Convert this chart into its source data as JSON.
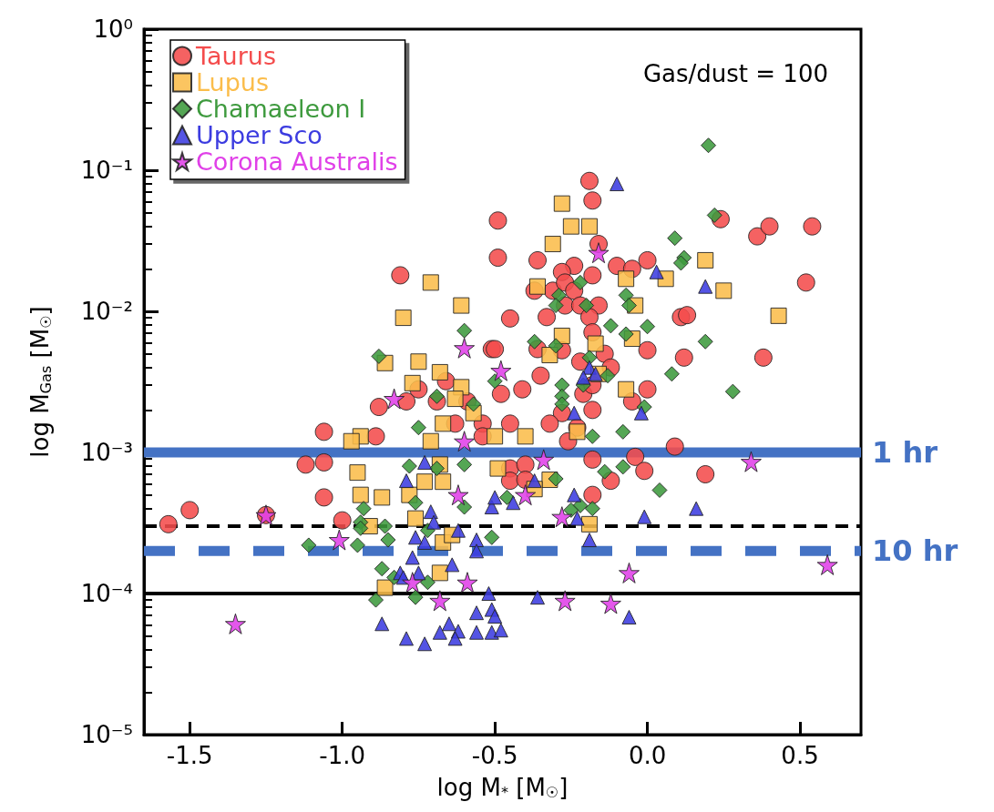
{
  "chart_data": {
    "type": "scatter",
    "xlabel": "log M$_{*}$ [M$_{☉}$]",
    "ylabel": "log M$_{Gas}$ [M$_{☉}$]",
    "log": "y",
    "legend": "top left",
    "xlim": [
      -1.65,
      0.7
    ],
    "xticks": [
      -1.5,
      {
        "value": -1,
        "label": "-1.0"
      },
      -0.5,
      {
        "value": 0,
        "label": "0.0"
      },
      0.5
    ],
    "ylim": [
      1e-05,
      1
    ],
    "yticks": [
      {
        "value": 1e-05,
        "label": "10⁻⁵"
      },
      {
        "value": 0.0001,
        "label": "10⁻⁴"
      },
      {
        "value": 0.001,
        "label": "10⁻³"
      },
      {
        "value": 0.01,
        "label": "10⁻²"
      },
      {
        "value": 0.1,
        "label": "10⁻¹"
      },
      {
        "value": 1,
        "label": "10⁰"
      }
    ],
    "annotations": [
      "Gas/dust = 100"
    ],
    "ref_lines": [
      {
        "axis": "y",
        "value": 0.001,
        "label": "1 hr",
        "color": "#4472c4",
        "line_style": "solid"
      },
      {
        "axis": "y",
        "value": 0.0003,
        "label": null,
        "color": "#000000",
        "line_style": "dashed"
      },
      {
        "axis": "y",
        "value": 0.0002,
        "label": "10 hr",
        "color": "#4472c4",
        "line_style": "dashed"
      },
      {
        "axis": "y",
        "value": 0.0001,
        "label": null,
        "color": "#000000",
        "line_style": "solid"
      }
    ],
    "series": [
      {
        "name": "Taurus",
        "color": "#f44c4c",
        "marker": "circle",
        "x": [
          -1.57,
          -1.5,
          -1.25,
          -1.06,
          -1.0,
          -1.12,
          -1.06,
          -1.06,
          -0.89,
          -0.88,
          -0.81,
          -0.79,
          -0.75,
          -0.66,
          -0.69,
          -0.59,
          -0.63,
          -0.54,
          -0.54,
          -0.51,
          -0.49,
          -0.49,
          -0.19,
          -0.18,
          -0.36,
          -0.24,
          -0.28,
          -0.18,
          -0.16,
          -0.1,
          -0.05,
          0.0,
          0.24,
          0.36,
          0.4,
          0.54,
          0.52,
          -0.37,
          -0.31,
          -0.27,
          -0.24,
          -0.27,
          -0.22,
          -0.16,
          -0.33,
          -0.19,
          0.11,
          0.13,
          -0.45,
          -0.5,
          -0.36,
          -0.28,
          -0.18,
          -0.14,
          -0.22,
          -0.12,
          0.0,
          0.12,
          0.38,
          -0.35,
          -0.41,
          -0.48,
          -0.21,
          -0.18,
          -0.05,
          0.0,
          -0.18,
          -0.28,
          -0.32,
          -0.45,
          -0.23,
          -0.18,
          -0.04,
          -0.01,
          0.19,
          -0.12,
          -0.18,
          -0.45,
          -0.4,
          -0.45,
          -0.4,
          -0.26,
          0.09
        ],
        "values": [
          0.00031,
          0.00039,
          0.00036,
          0.00048,
          0.00033,
          0.00082,
          0.00085,
          0.0014,
          0.0013,
          0.0021,
          0.018,
          0.0023,
          0.0028,
          0.0032,
          0.0023,
          0.0023,
          0.0016,
          0.0016,
          0.0013,
          0.0054,
          0.044,
          0.024,
          0.084,
          0.061,
          0.023,
          0.021,
          0.019,
          0.018,
          0.03,
          0.021,
          0.02,
          0.023,
          0.045,
          0.034,
          0.04,
          0.04,
          0.016,
          0.014,
          0.014,
          0.016,
          0.014,
          0.011,
          0.011,
          0.011,
          0.0091,
          0.0091,
          0.0091,
          0.0094,
          0.0089,
          0.0054,
          0.0054,
          0.0053,
          0.0071,
          0.005,
          0.0044,
          0.004,
          0.0053,
          0.0047,
          0.0047,
          0.0035,
          0.0028,
          0.0026,
          0.0026,
          0.003,
          0.0023,
          0.0028,
          0.002,
          0.0019,
          0.0016,
          0.0016,
          0.0015,
          0.00089,
          0.00093,
          0.00074,
          0.0007,
          0.00063,
          0.0005,
          0.00077,
          0.00082,
          0.00063,
          0.00064,
          0.0012,
          0.0011
        ]
      },
      {
        "name": "Lupus",
        "color": "#fbbd4b",
        "marker": "square",
        "x": [
          -0.71,
          -0.61,
          -0.8,
          -0.86,
          -0.75,
          -0.68,
          -0.77,
          -0.61,
          -0.63,
          -0.57,
          -0.67,
          -0.94,
          -0.97,
          -0.71,
          -0.95,
          -0.94,
          -0.87,
          -0.78,
          -0.73,
          -0.67,
          -0.76,
          -0.67,
          -0.64,
          -0.68,
          -0.86,
          -0.91,
          -0.68,
          -0.28,
          -0.25,
          -0.19,
          -0.31,
          -0.36,
          -0.07,
          0.06,
          0.19,
          0.25,
          0.43,
          -0.04,
          -0.28,
          -0.17,
          -0.32,
          -0.05,
          -0.16,
          -0.07,
          -0.5,
          -0.4,
          -0.23,
          -0.49,
          -0.32,
          -0.37,
          -0.19
        ],
        "values": [
          0.016,
          0.011,
          0.009,
          0.0043,
          0.0044,
          0.0037,
          0.0031,
          0.0029,
          0.0024,
          0.0019,
          0.0016,
          0.0013,
          0.0012,
          0.0012,
          0.00072,
          0.0005,
          0.00048,
          0.0005,
          0.00062,
          0.00062,
          0.00034,
          0.00023,
          0.00026,
          0.00014,
          0.00011,
          0.0003,
          0.00082,
          0.058,
          0.04,
          0.04,
          0.03,
          0.015,
          0.017,
          0.017,
          0.023,
          0.014,
          0.0093,
          0.011,
          0.0067,
          0.0059,
          0.0049,
          0.0064,
          0.0036,
          0.0028,
          0.0013,
          0.0013,
          0.0014,
          0.00077,
          0.00064,
          0.00055,
          0.00031
        ]
      },
      {
        "name": "Chamaeleon I",
        "color": "#3e9a3e",
        "marker": "diamond",
        "x": [
          0.2,
          0.22,
          0.09,
          0.12,
          0.11,
          -0.22,
          -0.29,
          -0.3,
          -0.2,
          -0.07,
          -0.06,
          -0.12,
          0.0,
          -0.07,
          0.19,
          -0.37,
          -0.3,
          -0.19,
          -0.13,
          0.08,
          0.28,
          -0.28,
          -0.21,
          -0.28,
          -0.28,
          -0.01,
          -0.08,
          -0.18,
          -0.5,
          -0.88,
          -0.6,
          -0.69,
          -0.57,
          -0.75,
          -0.78,
          -0.69,
          -0.6,
          -0.93,
          -0.94,
          -0.94,
          -0.86,
          -0.85,
          -0.95,
          -1.11,
          -0.76,
          -0.6,
          -0.51,
          -0.72,
          -0.87,
          -0.83,
          -0.72,
          -0.89,
          -0.76,
          -0.08,
          -0.14,
          0.04,
          -0.3,
          -0.22,
          -0.18,
          -0.25,
          -0.46
        ],
        "values": [
          0.15,
          0.048,
          0.033,
          0.024,
          0.022,
          0.016,
          0.013,
          0.011,
          0.011,
          0.013,
          0.011,
          0.0079,
          0.0078,
          0.0069,
          0.0061,
          0.0061,
          0.0057,
          0.0047,
          0.0035,
          0.0036,
          0.0027,
          0.003,
          0.003,
          0.0025,
          0.0022,
          0.0021,
          0.0014,
          0.0013,
          0.0032,
          0.0048,
          0.0073,
          0.0025,
          0.0022,
          0.0015,
          0.0008,
          0.00077,
          0.00082,
          0.0004,
          0.00032,
          0.00029,
          0.0003,
          0.00024,
          0.00022,
          0.00022,
          0.00044,
          0.00041,
          0.00025,
          0.00028,
          0.00015,
          0.00013,
          0.00012,
          9e-05,
          9.4e-05,
          0.00079,
          0.00073,
          0.00054,
          0.00065,
          0.00042,
          0.0004,
          0.00039,
          0.00048
        ]
      },
      {
        "name": "Upper Sco",
        "color": "#3c3ce0",
        "marker": "triangle",
        "x": [
          -0.1,
          0.03,
          0.19,
          -0.19,
          -0.21,
          -0.17,
          -0.24,
          -0.02,
          -0.73,
          -0.79,
          -0.71,
          -0.7,
          -0.76,
          -0.73,
          -0.62,
          -0.56,
          -0.56,
          -0.77,
          -0.64,
          -0.75,
          -0.81,
          -0.8,
          -0.51,
          -0.87,
          -0.79,
          -0.73,
          -0.68,
          -0.65,
          -0.62,
          -0.63,
          -0.56,
          -0.56,
          -0.51,
          -0.51,
          -0.52,
          -0.5,
          -0.44,
          -0.37,
          -0.24,
          -0.23,
          -0.19,
          -0.01,
          0.16,
          -0.36,
          -0.5,
          -0.48,
          -0.06
        ],
        "values": [
          0.08,
          0.019,
          0.015,
          0.004,
          0.0034,
          0.0036,
          0.0019,
          0.0019,
          0.00085,
          0.00063,
          0.00038,
          0.00032,
          0.00025,
          0.00023,
          0.00028,
          0.00024,
          0.0002,
          0.00018,
          0.00016,
          0.00014,
          0.00014,
          0.00013,
          0.00041,
          6.1e-05,
          4.8e-05,
          4.4e-05,
          5.3e-05,
          6.1e-05,
          5.4e-05,
          4.8e-05,
          5.3e-05,
          7.3e-05,
          7.7e-05,
          5.3e-05,
          0.0001,
          0.00048,
          0.00044,
          0.00063,
          0.0005,
          0.00034,
          0.00024,
          0.00035,
          0.0004,
          9.4e-05,
          6.9e-05,
          5.5e-05,
          6.8e-05
        ]
      },
      {
        "name": "Corona Australis",
        "color": "#e040e8",
        "marker": "star",
        "x": [
          -1.35,
          -1.25,
          -1.01,
          -0.62,
          -0.77,
          -0.68,
          -0.59,
          -0.6,
          -0.83,
          -0.6,
          -0.48,
          -0.16,
          -0.4,
          -0.28,
          -0.06,
          -0.27,
          -0.12,
          0.59,
          0.34,
          -0.34
        ],
        "values": [
          6.1e-05,
          0.00036,
          0.00024,
          0.0005,
          0.00012,
          8.9e-05,
          0.00012,
          0.0012,
          0.0024,
          0.0055,
          0.0038,
          0.026,
          0.0005,
          0.00035,
          0.00014,
          8.9e-05,
          8.5e-05,
          0.00016,
          0.00086,
          0.00089
        ]
      }
    ]
  }
}
